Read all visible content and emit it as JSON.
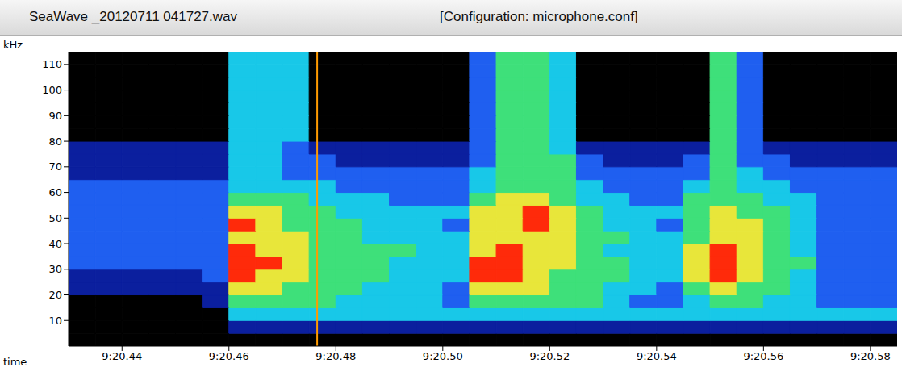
{
  "chart_data": {
    "type": "spectrogram",
    "title": "SeaWave _20120711 041727.wav",
    "subtitle": "[Configuration: microphone.conf]",
    "x_label": "time",
    "y_label": "kHz",
    "xlim": [
      20.43,
      20.585
    ],
    "ylim": [
      0,
      115
    ],
    "xticks": [
      {
        "value": 20.44,
        "label": "9:20.44"
      },
      {
        "value": 20.46,
        "label": "9:20.46"
      },
      {
        "value": 20.48,
        "label": "9:20.48"
      },
      {
        "value": 20.5,
        "label": "9:20.50"
      },
      {
        "value": 20.52,
        "label": "9:20.52"
      },
      {
        "value": 20.54,
        "label": "9:20.54"
      },
      {
        "value": 20.56,
        "label": "9:20.56"
      },
      {
        "value": 20.58,
        "label": "9:20.58"
      }
    ],
    "yticks": [
      10,
      20,
      30,
      40,
      50,
      60,
      70,
      80,
      90,
      100,
      110
    ],
    "grid": false,
    "cursor_x": 20.4765,
    "cursor_color": "#ff9a00",
    "x_bins": [
      20.43,
      20.435,
      20.44,
      20.445,
      20.45,
      20.455,
      20.46,
      20.465,
      20.47,
      20.475,
      20.48,
      20.485,
      20.49,
      20.495,
      20.5,
      20.505,
      20.51,
      20.515,
      20.52,
      20.525,
      20.53,
      20.535,
      20.54,
      20.545,
      20.55,
      20.555,
      20.56,
      20.565,
      20.57,
      20.575,
      20.58,
      20.585
    ],
    "y_bins": [
      0,
      5,
      10,
      15,
      20,
      25,
      30,
      35,
      40,
      45,
      50,
      55,
      60,
      65,
      70,
      75,
      80,
      85,
      90,
      95,
      100,
      105,
      110,
      115
    ],
    "zlim": [
      0,
      6
    ],
    "colors": [
      "#000000",
      "#0b1f9e",
      "#1f5ff0",
      "#18c8e8",
      "#3ee07a",
      "#e8e63a",
      "#ff2a0a"
    ],
    "z": [
      [
        0,
        0,
        0,
        0,
        0,
        0,
        0,
        0,
        0,
        0,
        0,
        0,
        0,
        0,
        0,
        0,
        0,
        0,
        0,
        0,
        0,
        0,
        0,
        0,
        0,
        0,
        0,
        0,
        0,
        0,
        0
      ],
      [
        0,
        0,
        0,
        0,
        0,
        0,
        1,
        1,
        1,
        1,
        1,
        1,
        1,
        1,
        1,
        1,
        1,
        1,
        1,
        1,
        1,
        1,
        1,
        1,
        1,
        1,
        1,
        1,
        1,
        1,
        1
      ],
      [
        0,
        0,
        0,
        0,
        0,
        0,
        3,
        3,
        3,
        3,
        3,
        3,
        3,
        3,
        3,
        3,
        3,
        3,
        3,
        3,
        3,
        3,
        3,
        3,
        3,
        3,
        3,
        3,
        3,
        3,
        3
      ],
      [
        0,
        0,
        0,
        0,
        0,
        1,
        4,
        4,
        4,
        4,
        3,
        3,
        3,
        3,
        2,
        4,
        4,
        4,
        4,
        4,
        3,
        2,
        2,
        3,
        4,
        4,
        3,
        3,
        2,
        2,
        2
      ],
      [
        1,
        1,
        1,
        1,
        1,
        1,
        5,
        5,
        4,
        4,
        4,
        3,
        3,
        3,
        2,
        5,
        5,
        5,
        4,
        4,
        3,
        3,
        2,
        4,
        5,
        4,
        4,
        3,
        2,
        2,
        2
      ],
      [
        1,
        1,
        1,
        1,
        1,
        2,
        6,
        5,
        5,
        4,
        4,
        4,
        3,
        3,
        3,
        6,
        6,
        5,
        4,
        4,
        4,
        3,
        3,
        5,
        6,
        5,
        4,
        3,
        2,
        2,
        2
      ],
      [
        2,
        2,
        2,
        2,
        2,
        2,
        6,
        6,
        5,
        4,
        4,
        4,
        3,
        3,
        3,
        6,
        6,
        5,
        5,
        4,
        4,
        3,
        3,
        5,
        6,
        5,
        4,
        4,
        2,
        2,
        2
      ],
      [
        2,
        2,
        2,
        2,
        2,
        2,
        6,
        5,
        5,
        4,
        4,
        4,
        4,
        3,
        3,
        5,
        6,
        5,
        5,
        4,
        3,
        3,
        3,
        5,
        6,
        5,
        4,
        3,
        2,
        2,
        2
      ],
      [
        2,
        2,
        2,
        2,
        2,
        2,
        5,
        5,
        5,
        4,
        4,
        3,
        3,
        3,
        3,
        5,
        5,
        5,
        5,
        4,
        4,
        3,
        3,
        4,
        5,
        5,
        4,
        3,
        2,
        2,
        2
      ],
      [
        2,
        2,
        2,
        2,
        2,
        2,
        6,
        5,
        4,
        4,
        4,
        3,
        3,
        3,
        2,
        5,
        5,
        6,
        5,
        4,
        3,
        3,
        2,
        4,
        5,
        5,
        4,
        3,
        2,
        2,
        2
      ],
      [
        2,
        2,
        2,
        2,
        2,
        2,
        5,
        5,
        4,
        4,
        3,
        3,
        3,
        3,
        3,
        5,
        5,
        6,
        5,
        4,
        3,
        3,
        3,
        4,
        5,
        4,
        4,
        3,
        2,
        2,
        2
      ],
      [
        2,
        2,
        2,
        2,
        2,
        2,
        4,
        4,
        4,
        3,
        3,
        3,
        2,
        2,
        2,
        4,
        5,
        5,
        4,
        3,
        3,
        2,
        2,
        4,
        4,
        4,
        3,
        3,
        2,
        2,
        2
      ],
      [
        2,
        2,
        2,
        2,
        2,
        2,
        3,
        3,
        3,
        3,
        2,
        2,
        2,
        2,
        2,
        3,
        4,
        4,
        4,
        3,
        2,
        2,
        2,
        3,
        4,
        3,
        3,
        2,
        2,
        2,
        2
      ],
      [
        1,
        1,
        1,
        1,
        1,
        1,
        3,
        3,
        2,
        2,
        2,
        2,
        2,
        2,
        2,
        3,
        4,
        4,
        4,
        2,
        2,
        2,
        2,
        2,
        4,
        3,
        2,
        2,
        2,
        2,
        2
      ],
      [
        1,
        1,
        1,
        1,
        1,
        1,
        3,
        3,
        2,
        2,
        1,
        1,
        1,
        1,
        1,
        2,
        4,
        4,
        4,
        2,
        1,
        1,
        1,
        2,
        4,
        2,
        2,
        1,
        1,
        1,
        1
      ],
      [
        1,
        1,
        1,
        1,
        1,
        1,
        3,
        3,
        2,
        1,
        1,
        1,
        1,
        1,
        1,
        2,
        4,
        4,
        3,
        1,
        1,
        1,
        1,
        1,
        4,
        2,
        1,
        1,
        1,
        1,
        1
      ],
      [
        0,
        0,
        0,
        0,
        0,
        0,
        3,
        3,
        3,
        0,
        0,
        0,
        0,
        0,
        0,
        2,
        4,
        4,
        3,
        0,
        0,
        0,
        0,
        0,
        4,
        2,
        0,
        0,
        0,
        0,
        0
      ],
      [
        0,
        0,
        0,
        0,
        0,
        0,
        3,
        3,
        3,
        0,
        0,
        0,
        0,
        0,
        0,
        2,
        4,
        4,
        3,
        0,
        0,
        0,
        0,
        0,
        4,
        2,
        0,
        0,
        0,
        0,
        0
      ],
      [
        0,
        0,
        0,
        0,
        0,
        0,
        3,
        3,
        3,
        0,
        0,
        0,
        0,
        0,
        0,
        2,
        4,
        4,
        3,
        0,
        0,
        0,
        0,
        0,
        4,
        2,
        0,
        0,
        0,
        0,
        0
      ],
      [
        0,
        0,
        0,
        0,
        0,
        0,
        3,
        3,
        3,
        0,
        0,
        0,
        0,
        0,
        0,
        2,
        4,
        4,
        3,
        0,
        0,
        0,
        0,
        0,
        4,
        2,
        0,
        0,
        0,
        0,
        0
      ],
      [
        0,
        0,
        0,
        0,
        0,
        0,
        3,
        3,
        3,
        0,
        0,
        0,
        0,
        0,
        0,
        2,
        4,
        4,
        3,
        0,
        0,
        0,
        0,
        0,
        4,
        2,
        0,
        0,
        0,
        0,
        0
      ],
      [
        0,
        0,
        0,
        0,
        0,
        0,
        3,
        3,
        3,
        0,
        0,
        0,
        0,
        0,
        0,
        2,
        4,
        4,
        3,
        0,
        0,
        0,
        0,
        0,
        4,
        2,
        0,
        0,
        0,
        0,
        0
      ],
      [
        0,
        0,
        0,
        0,
        0,
        0,
        3,
        3,
        3,
        0,
        0,
        0,
        0,
        0,
        0,
        2,
        4,
        4,
        3,
        0,
        0,
        0,
        0,
        0,
        4,
        2,
        0,
        0,
        0,
        0,
        0
      ]
    ]
  }
}
